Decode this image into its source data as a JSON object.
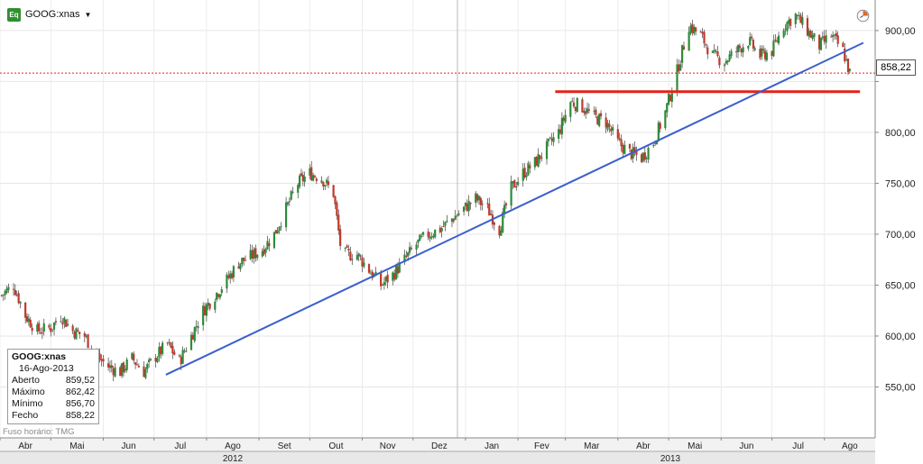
{
  "header": {
    "icon_label": "Eq",
    "symbol": "GOOG:xnas",
    "caret": "▼"
  },
  "info_box": {
    "symbol": "GOOG:xnas",
    "date": "16-Ago-2013",
    "rows": [
      {
        "label": "Aberto",
        "value": "859,52"
      },
      {
        "label": "Máximo",
        "value": "862,42"
      },
      {
        "label": "Mínimo",
        "value": "856,70"
      },
      {
        "label": "Fecho",
        "value": "858,22"
      }
    ]
  },
  "timezone_label": "Fuso horário: TMG",
  "last_price_label": "858,22",
  "colors": {
    "up": "#2e8b3a",
    "down": "#c0392b",
    "wick": "#222222",
    "trendline": "#3a5fcd",
    "support": "#e62117",
    "last_price_line": "#e62117"
  },
  "chart_data": {
    "type": "candlestick",
    "title": "",
    "xlabel": "",
    "ylabel": "",
    "ylim": [
      500,
      930
    ],
    "y_ticks": [
      550,
      600,
      650,
      700,
      750,
      800,
      850,
      900
    ],
    "y_tick_labels": [
      "550,00",
      "600,00",
      "650,00",
      "700,00",
      "750,00",
      "800,00",
      "",
      "900,00"
    ],
    "x_range": [
      "2012-04-01",
      "2013-08-31"
    ],
    "x_ticks": [
      {
        "date": "2012-04-01",
        "label": "Abr"
      },
      {
        "date": "2012-05-01",
        "label": "Mai"
      },
      {
        "date": "2012-06-01",
        "label": "Jun"
      },
      {
        "date": "2012-07-01",
        "label": "Jul"
      },
      {
        "date": "2012-08-01",
        "label": "Ago"
      },
      {
        "date": "2012-09-01",
        "label": "Set"
      },
      {
        "date": "2012-10-01",
        "label": "Out"
      },
      {
        "date": "2012-11-01",
        "label": "Nov"
      },
      {
        "date": "2012-12-01",
        "label": "Dez"
      },
      {
        "date": "2013-01-01",
        "label": "Jan"
      },
      {
        "date": "2013-02-01",
        "label": "Fev"
      },
      {
        "date": "2013-03-01",
        "label": "Mar"
      },
      {
        "date": "2013-04-01",
        "label": "Abr"
      },
      {
        "date": "2013-05-01",
        "label": "Mai"
      },
      {
        "date": "2013-06-01",
        "label": "Jun"
      },
      {
        "date": "2013-07-01",
        "label": "Jul"
      },
      {
        "date": "2013-08-01",
        "label": "Ago"
      }
    ],
    "years": [
      {
        "label": "2012",
        "start": "2012-04-01",
        "end": "2013-01-01"
      },
      {
        "label": "2013",
        "start": "2013-01-01",
        "end": "2013-08-31"
      }
    ],
    "price_path": [
      [
        "2012-04-02",
        640
      ],
      [
        "2012-04-09",
        650
      ],
      [
        "2012-04-16",
        620
      ],
      [
        "2012-04-23",
        605
      ],
      [
        "2012-05-01",
        608
      ],
      [
        "2012-05-07",
        620
      ],
      [
        "2012-05-14",
        605
      ],
      [
        "2012-05-21",
        600
      ],
      [
        "2012-05-28",
        580
      ],
      [
        "2012-06-04",
        570
      ],
      [
        "2012-06-11",
        565
      ],
      [
        "2012-06-18",
        578
      ],
      [
        "2012-06-25",
        565
      ],
      [
        "2012-07-02",
        580
      ],
      [
        "2012-07-09",
        592
      ],
      [
        "2012-07-16",
        575
      ],
      [
        "2012-07-23",
        600
      ],
      [
        "2012-07-30",
        625
      ],
      [
        "2012-08-06",
        640
      ],
      [
        "2012-08-13",
        655
      ],
      [
        "2012-08-20",
        672
      ],
      [
        "2012-08-27",
        678
      ],
      [
        "2012-09-03",
        685
      ],
      [
        "2012-09-10",
        700
      ],
      [
        "2012-09-17",
        725
      ],
      [
        "2012-09-24",
        750
      ],
      [
        "2012-10-01",
        760
      ],
      [
        "2012-10-08",
        755
      ],
      [
        "2012-10-15",
        740
      ],
      [
        "2012-10-19",
        690
      ],
      [
        "2012-10-22",
        680
      ],
      [
        "2012-10-29",
        680
      ],
      [
        "2012-11-05",
        665
      ],
      [
        "2012-11-12",
        650
      ],
      [
        "2012-11-19",
        660
      ],
      [
        "2012-11-26",
        675
      ],
      [
        "2012-12-03",
        690
      ],
      [
        "2012-12-10",
        700
      ],
      [
        "2012-12-17",
        705
      ],
      [
        "2012-12-24",
        715
      ],
      [
        "2012-12-31",
        725
      ],
      [
        "2013-01-07",
        735
      ],
      [
        "2013-01-14",
        725
      ],
      [
        "2013-01-21",
        705
      ],
      [
        "2013-01-28",
        745
      ],
      [
        "2013-02-04",
        760
      ],
      [
        "2013-02-11",
        770
      ],
      [
        "2013-02-18",
        785
      ],
      [
        "2013-02-25",
        800
      ],
      [
        "2013-03-04",
        830
      ],
      [
        "2013-03-11",
        825
      ],
      [
        "2013-03-18",
        815
      ],
      [
        "2013-03-25",
        810
      ],
      [
        "2013-04-01",
        790
      ],
      [
        "2013-04-08",
        780
      ],
      [
        "2013-04-15",
        775
      ],
      [
        "2013-04-22",
        790
      ],
      [
        "2013-04-29",
        820
      ],
      [
        "2013-05-06",
        860
      ],
      [
        "2013-05-13",
        905
      ],
      [
        "2013-05-20",
        895
      ],
      [
        "2013-05-27",
        875
      ],
      [
        "2013-06-03",
        870
      ],
      [
        "2013-06-10",
        880
      ],
      [
        "2013-06-17",
        890
      ],
      [
        "2013-06-24",
        875
      ],
      [
        "2013-07-01",
        880
      ],
      [
        "2013-07-08",
        905
      ],
      [
        "2013-07-15",
        915
      ],
      [
        "2013-07-22",
        900
      ],
      [
        "2013-07-29",
        885
      ],
      [
        "2013-08-05",
        895
      ],
      [
        "2013-08-12",
        880
      ],
      [
        "2013-08-16",
        858
      ]
    ],
    "last_price": 858.22,
    "support_line": {
      "start": "2013-02-23",
      "end": "2013-08-22",
      "value": 840
    },
    "trendline": {
      "start": [
        "2012-07-08",
        562
      ],
      "end": [
        "2013-08-24",
        888
      ]
    }
  }
}
